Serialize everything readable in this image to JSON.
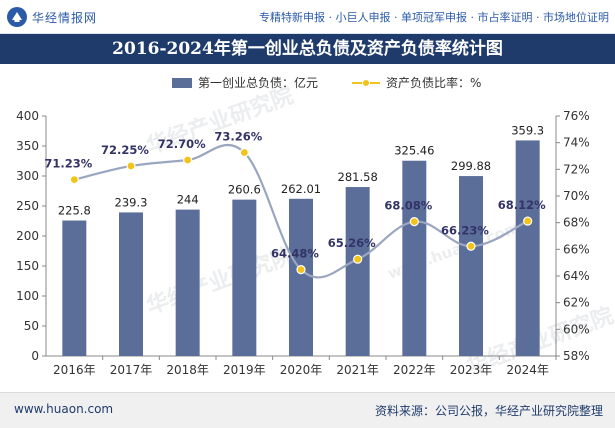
{
  "header": {
    "brand": "华经情报网",
    "services": "专精特新申报 · 小巨人申报 · 单项冠军申报 · 市占率证明 · 市场地位证明"
  },
  "footer": {
    "url": "www.huaon.com",
    "source": "资料来源：公司公报，华经产业研究院整理"
  },
  "watermarks": [
    "华经产业研究院",
    "华经产业研究院",
    "华经产业研究院",
    "www.huaon.com"
  ],
  "chart_data": {
    "type": "bar",
    "title": "2016-2024年第一创业总负债及资产负债率统计图",
    "categories": [
      "2016年",
      "2017年",
      "2018年",
      "2019年",
      "2020年",
      "2021年",
      "2022年",
      "2023年",
      "2024年"
    ],
    "series": [
      {
        "name": "第一创业总负债：亿元",
        "type": "bar",
        "axis": "left",
        "values": [
          225.8,
          239.3,
          244,
          260.6,
          262.01,
          281.58,
          325.46,
          299.88,
          359.3
        ],
        "labels": [
          "225.8",
          "239.3",
          "244",
          "260.6",
          "262.01",
          "281.58",
          "325.46",
          "299.88",
          "359.3"
        ],
        "color": "#5b6e99"
      },
      {
        "name": "资产负债比率：%",
        "type": "line",
        "axis": "right",
        "values": [
          71.23,
          72.25,
          72.7,
          73.26,
          64.48,
          65.26,
          68.08,
          66.23,
          68.12
        ],
        "labels": [
          "71.23%",
          "72.25%",
          "72.70%",
          "73.26%",
          "64.48%",
          "65.26%",
          "68.08%",
          "66.23%",
          "68.12%"
        ],
        "color": "#f2c318"
      }
    ],
    "y_left": {
      "min": 0,
      "max": 400,
      "ticks": [
        "0",
        "50",
        "100",
        "150",
        "200",
        "250",
        "300",
        "350",
        "400"
      ]
    },
    "y_right": {
      "min": 58,
      "max": 76,
      "ticks": [
        "58%",
        "60%",
        "62%",
        "64%",
        "66%",
        "68%",
        "70%",
        "72%",
        "74%",
        "76%"
      ]
    },
    "legend_position": "top-center",
    "grid": false,
    "line_smooth": true
  }
}
